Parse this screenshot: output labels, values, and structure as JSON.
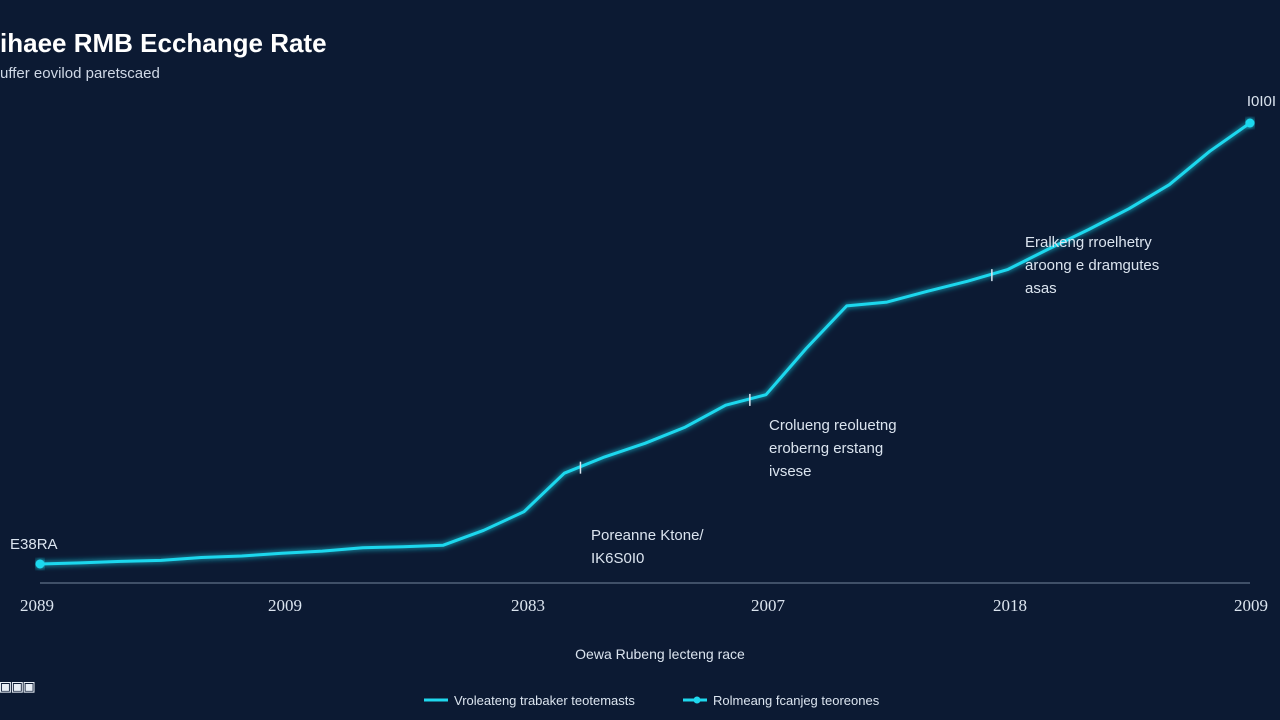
{
  "chart_data": {
    "type": "line",
    "title": "ihaee RMB Ecchange Rate",
    "subtitle": "uffer eovilod paretscaed",
    "x_tick_labels": [
      "2089",
      "2009",
      "2083",
      "2007",
      "2018",
      "2009"
    ],
    "x_caption": "Oewa Rubeng lecteng race",
    "series": [
      {
        "color": "#1fd8ee",
        "x": [
          0,
          0.5,
          1,
          1.5,
          2,
          2.5,
          3,
          3.5,
          4,
          4.5,
          5,
          5.5,
          6,
          6.5,
          7,
          7.5,
          8,
          8.5,
          9,
          9.5,
          10,
          10.5,
          11,
          11.5,
          12,
          12.5,
          13,
          13.5,
          14,
          14.5,
          15
        ],
        "values": [
          0.4,
          0.8,
          1.4,
          1.8,
          2.9,
          3.5,
          4.6,
          5.4,
          6.7,
          7.1,
          7.7,
          13.5,
          20.7,
          35.7,
          42.0,
          47.3,
          53.6,
          62.1,
          66.2,
          84.2,
          100.7,
          102.2,
          106.4,
          110.3,
          114.9,
          122.8,
          130.4,
          138.5,
          147.8,
          160.8,
          171.8
        ],
        "markers": [
          {
            "x": 0,
            "label": "E38RA"
          },
          {
            "x": 6.7,
            "label": "Poreanne Ktone/ IK6S0I0"
          },
          {
            "x": 8.8,
            "label": "Crolueng reoluetng eroberng erstang ivsese"
          },
          {
            "x": 11.8,
            "label": "Eralkeng rroelhetry aroong e dramgutes asas"
          },
          {
            "x": 15,
            "label": "I0I0I"
          }
        ]
      }
    ],
    "annotations": [
      {
        "lines": [
          "Poreanne Ktone/",
          "IK6S0I0"
        ]
      },
      {
        "lines": [
          "Crolueng reoluetng",
          "eroberng erstang",
          "ivsese"
        ]
      },
      {
        "lines": [
          "Eralkeng rroelhetry",
          "aroong e dramgutes",
          "asas"
        ]
      }
    ],
    "start_label": "E38RA",
    "end_label": "I0I0I",
    "legend": [
      {
        "label": "Vroleateng trabaker teotemasts",
        "color": "#1fd8ee",
        "marker": false
      },
      {
        "label": "Rolmeang fcanjeg teoreones",
        "color": "#1fd8ee",
        "marker": true
      }
    ],
    "legend_position": "bottom-center",
    "grid": false,
    "ylim": [
      0,
      180
    ]
  },
  "watermark_text": "IDI@I",
  "colors": {
    "background": "#0c1a33",
    "line": "#1fd8ee",
    "axis": "#8fa3b8"
  }
}
